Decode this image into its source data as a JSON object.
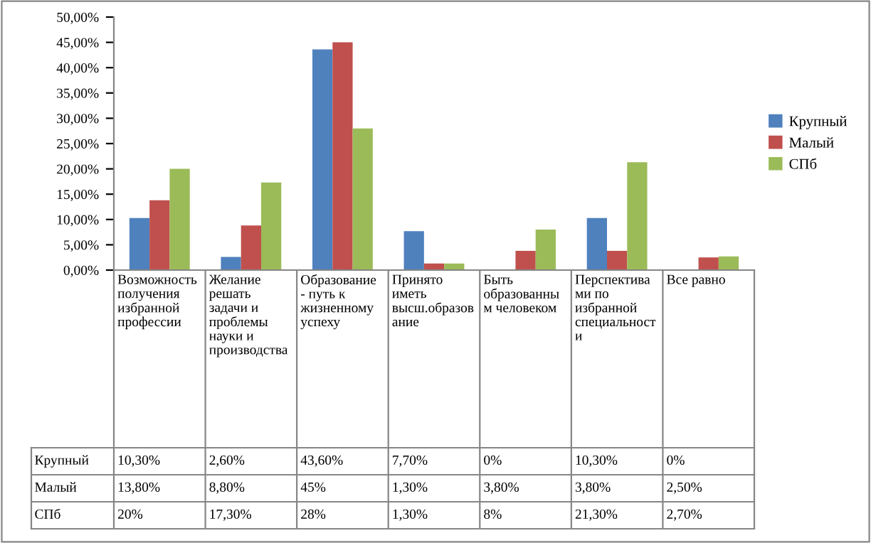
{
  "chart_data": {
    "type": "bar",
    "categories": [
      "Возможность получения избранной профессии",
      "Желание решать задачи и проблемы науки и производства",
      "Образование - путь к жизненному успеху",
      "Принято иметь высш.образование",
      "Быть образованным человеком",
      "Перспективами по избранной специальности",
      "Все равно"
    ],
    "series": [
      {
        "name": "Крупный",
        "color": "#4f81bd",
        "values": [
          10.3,
          2.6,
          43.6,
          7.7,
          0,
          10.3,
          0
        ],
        "value_labels": [
          "10,30%",
          "2,60%",
          "43,60%",
          "7,70%",
          "0%",
          "10,30%",
          "0%"
        ]
      },
      {
        "name": "Малый",
        "color": "#c0504d",
        "values": [
          13.8,
          8.8,
          45,
          1.3,
          3.8,
          3.8,
          2.5
        ],
        "value_labels": [
          "13,80%",
          "8,80%",
          "45%",
          "1,30%",
          "3,80%",
          "3,80%",
          "2,50%"
        ]
      },
      {
        "name": "СПб",
        "color": "#9bbb59",
        "values": [
          20,
          17.3,
          28,
          1.3,
          8,
          21.3,
          2.7
        ],
        "value_labels": [
          "20%",
          "17,30%",
          "28%",
          "1,30%",
          "8%",
          "21,30%",
          "2,70%"
        ]
      }
    ],
    "ylim": [
      0,
      50
    ],
    "yticks": [
      {
        "value": 0,
        "label": "0,00%"
      },
      {
        "value": 5,
        "label": "5,00%"
      },
      {
        "value": 10,
        "label": "10,00%"
      },
      {
        "value": 15,
        "label": "15,00%"
      },
      {
        "value": 20,
        "label": "20,00%"
      },
      {
        "value": 25,
        "label": "25,00%"
      },
      {
        "value": 30,
        "label": "30,00%"
      },
      {
        "value": 35,
        "label": "35,00%"
      },
      {
        "value": 40,
        "label": "40,00%"
      },
      {
        "value": 45,
        "label": "45,00%"
      },
      {
        "value": 50,
        "label": "50,00%"
      }
    ],
    "grid": false,
    "legend": "right"
  }
}
